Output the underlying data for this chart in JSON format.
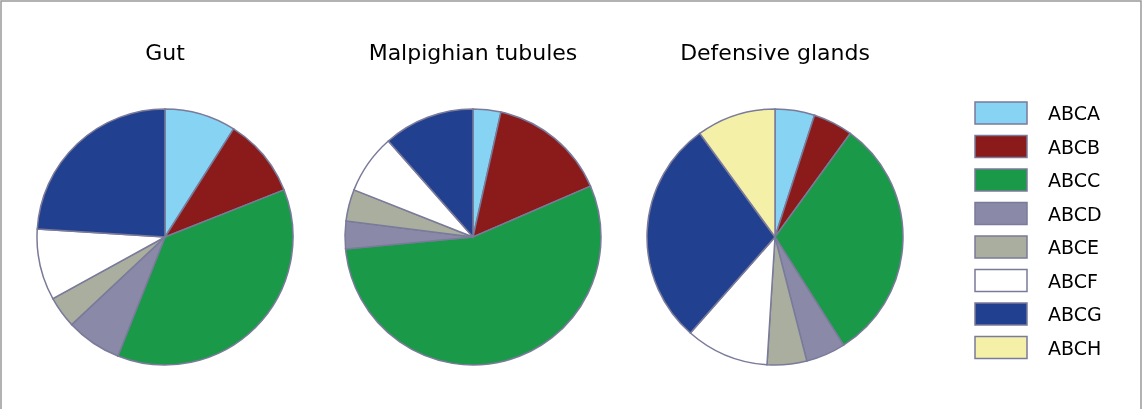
{
  "chart_data": [
    {
      "type": "pie",
      "title": "Gut",
      "categories": [
        null,
        null,
        null,
        null,
        null,
        null,
        null
      ],
      "values": [
        9,
        10,
        37,
        7,
        4,
        9,
        24
      ],
      "colors": [
        "#87d3f3",
        "#8b1a1a",
        "#1a9a48",
        "#8a8aa8",
        "#a9ae9e",
        "#ffffff",
        "#21408f"
      ],
      "legend": false
    },
    {
      "type": "pie",
      "title": "Malpighian tubules",
      "categories": [
        null,
        null,
        null,
        null,
        null,
        null,
        null
      ],
      "values": [
        3.5,
        15,
        55,
        3.5,
        4,
        7.5,
        11.5
      ],
      "colors": [
        "#87d3f3",
        "#8b1a1a",
        "#1a9a48",
        "#8a8aa8",
        "#a9ae9e",
        "#ffffff",
        "#21408f"
      ],
      "legend": false
    },
    {
      "type": "pie",
      "title": "Defensive glands",
      "categories": [
        "ABCA",
        "ABCB",
        "ABCC",
        "ABCD",
        "ABCE",
        "ABCF",
        "ABCG",
        "ABCH"
      ],
      "values": [
        5,
        5,
        31,
        5,
        5,
        10.5,
        28.5,
        10
      ],
      "colors": [
        "#87d3f3",
        "#8b1a1a",
        "#1a9a48",
        "#8a8aa8",
        "#a9ae9e",
        "#ffffff",
        "#21408f",
        "#f5f0a8"
      ],
      "legend": "right"
    }
  ]
}
